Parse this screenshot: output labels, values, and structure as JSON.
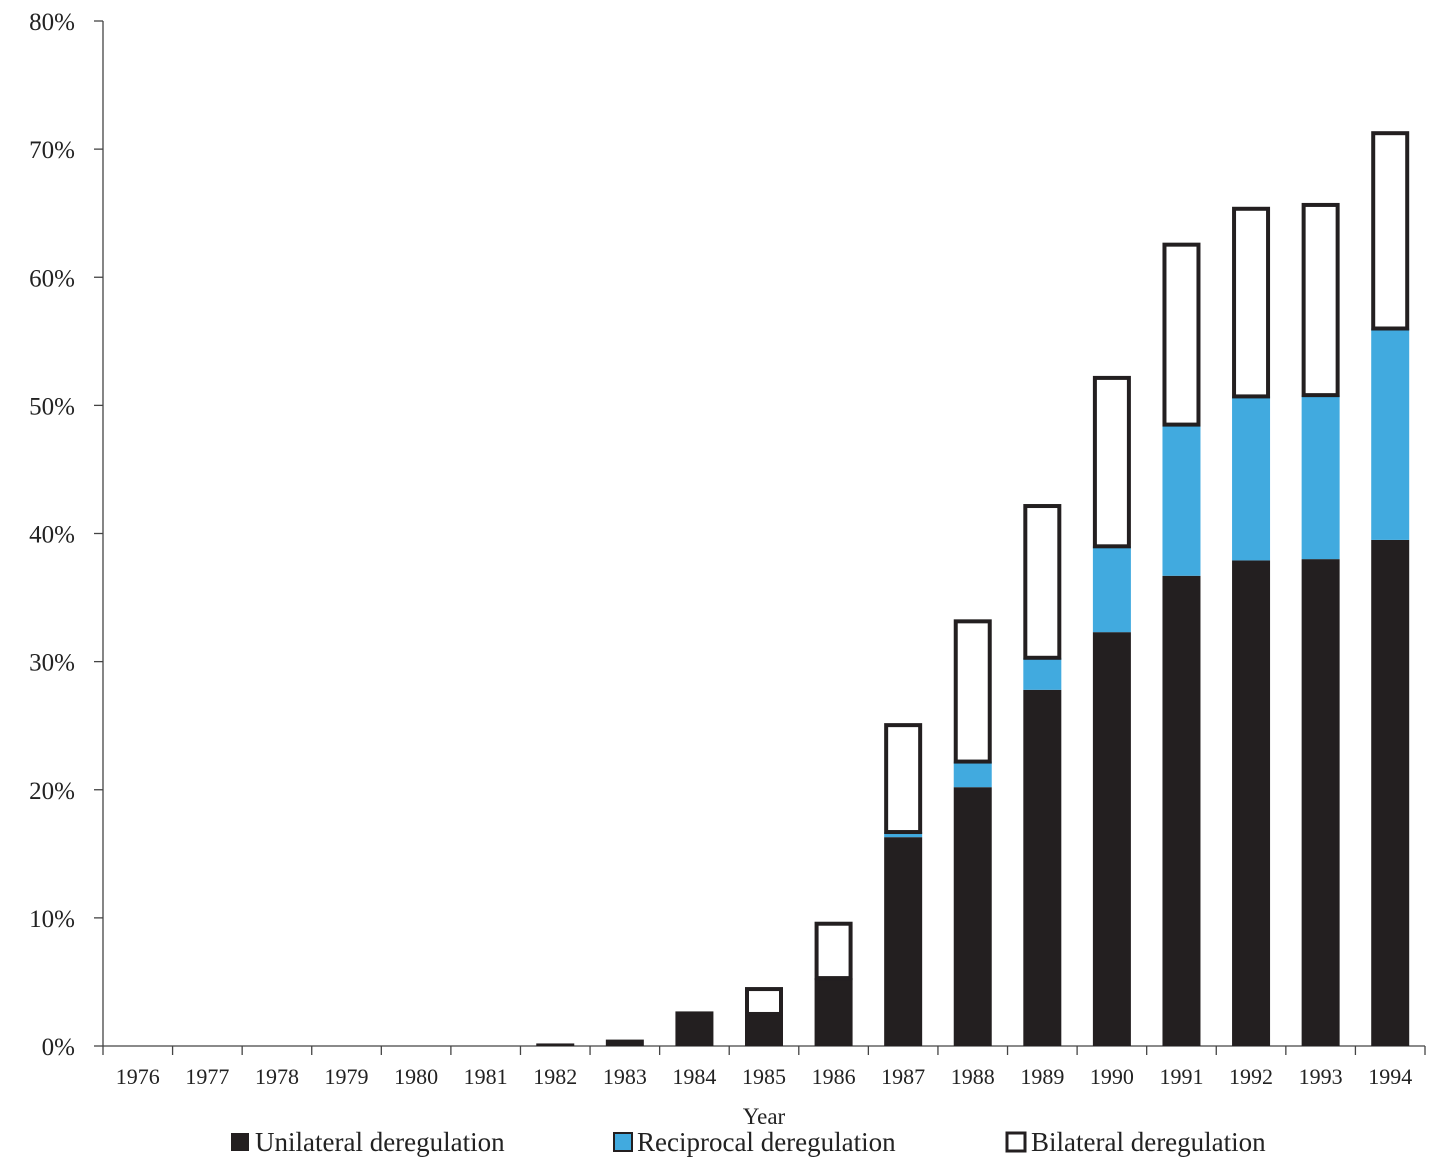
{
  "chart_data": {
    "type": "bar",
    "stacked": true,
    "title": "",
    "xlabel": "Year",
    "ylabel": "",
    "ylim": [
      0,
      80
    ],
    "y_unit": "%",
    "yticks": [
      "0%",
      "10%",
      "20%",
      "30%",
      "40%",
      "50%",
      "60%",
      "70%",
      "80%"
    ],
    "categories": [
      "1976",
      "1977",
      "1978",
      "1979",
      "1980",
      "1981",
      "1982",
      "1983",
      "1984",
      "1985",
      "1986",
      "1987",
      "1988",
      "1989",
      "1990",
      "1991",
      "1992",
      "1993",
      "1994"
    ],
    "series": [
      {
        "name": "Unilateral deregulation",
        "color": "#231f20",
        "values": [
          0,
          0,
          0,
          0,
          0,
          0,
          0.2,
          0.5,
          2.7,
          2.5,
          5.3,
          16.3,
          20.2,
          27.8,
          32.3,
          36.7,
          37.9,
          38.0,
          39.5
        ]
      },
      {
        "name": "Reciprocal deregulation",
        "color": "#41aadf",
        "values": [
          0,
          0,
          0,
          0,
          0,
          0,
          0,
          0,
          0,
          0,
          0,
          0.4,
          2.0,
          2.5,
          6.7,
          11.8,
          12.8,
          12.8,
          16.5
        ]
      },
      {
        "name": "Bilateral deregulation",
        "color": "#ffffff",
        "values": [
          0,
          0,
          0,
          0,
          0,
          0,
          0,
          0,
          0,
          2.1,
          4.4,
          8.5,
          11.1,
          12.0,
          13.3,
          14.2,
          14.8,
          15.0,
          15.4
        ]
      }
    ],
    "grid": false,
    "legend_position": "bottom"
  }
}
